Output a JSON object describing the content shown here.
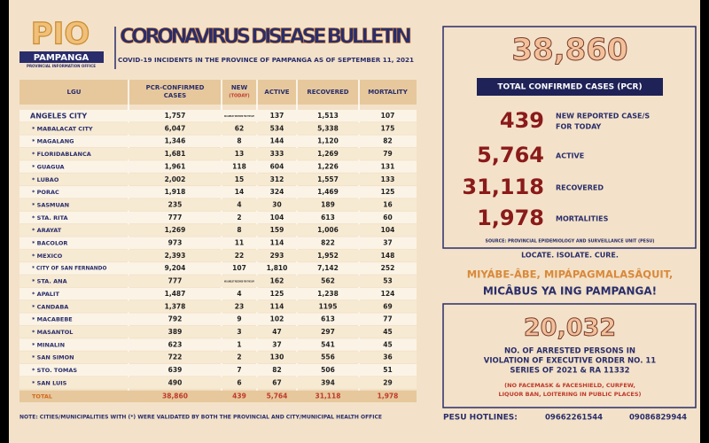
{
  "logo": {
    "title": "PIO",
    "label": "PAMPANGA",
    "office": "PROVINCIAL INFORMATION OFFICE"
  },
  "header": {
    "title": "CORONAVIRUS DISEASE BULLETIN",
    "subtitle": "COVID-19 INCIDENTS IN THE PROVINCE OF PAMPANGA AS OF SEPTEMBER 11, 2021"
  },
  "table": {
    "columns": [
      [
        "LGU"
      ],
      [
        "PCR-CONFIRMED",
        "CASES"
      ],
      [
        "NEW",
        "(TODAY)"
      ],
      [
        "ACTIVE"
      ],
      [
        "RECOVERED"
      ],
      [
        "MORTALITY"
      ]
    ],
    "rows": [
      [
        "ANGELES CITY",
        "1,757",
        "NO LINELIST RECEIVED FOR THE DAY",
        "137",
        "1,513",
        "107"
      ],
      [
        "* MABALACAT CITY",
        "6,047",
        "62",
        "534",
        "5,338",
        "175"
      ],
      [
        "* MAGALANG",
        "1,346",
        "8",
        "144",
        "1,120",
        "82"
      ],
      [
        "* FLORIDABLANCA",
        "1,681",
        "13",
        "333",
        "1,269",
        "79"
      ],
      [
        "* GUAGUA",
        "1,961",
        "118",
        "604",
        "1,226",
        "131"
      ],
      [
        "* LUBAO",
        "2,002",
        "15",
        "312",
        "1,557",
        "133"
      ],
      [
        "* PORAC",
        "1,918",
        "14",
        "324",
        "1,469",
        "125"
      ],
      [
        "* SASMUAN",
        "235",
        "4",
        "30",
        "189",
        "16"
      ],
      [
        "* STA. RITA",
        "777",
        "2",
        "104",
        "613",
        "60"
      ],
      [
        "* ARAYAT",
        "1,269",
        "8",
        "159",
        "1,006",
        "104"
      ],
      [
        "* BACOLOR",
        "973",
        "11",
        "114",
        "822",
        "37"
      ],
      [
        "* MEXICO",
        "2,393",
        "22",
        "293",
        "1,952",
        "148"
      ],
      [
        "* CITY OF SAN FERNANDO",
        "9,204",
        "107",
        "1,810",
        "7,142",
        "252"
      ],
      [
        "* STA. ANA",
        "777",
        "NO LINELIST RECEIVED FOR THE DAY",
        "162",
        "562",
        "53"
      ],
      [
        "* APALIT",
        "1,487",
        "4",
        "125",
        "1,238",
        "124"
      ],
      [
        "* CANDABA",
        "1,378",
        "23",
        "114",
        "1195",
        "69"
      ],
      [
        "* MACABEBE",
        "792",
        "9",
        "102",
        "613",
        "77"
      ],
      [
        "* MASANTOL",
        "389",
        "3",
        "47",
        "297",
        "45"
      ],
      [
        "* MINALIN",
        "623",
        "1",
        "37",
        "541",
        "45"
      ],
      [
        "* SAN SIMON",
        "722",
        "2",
        "130",
        "556",
        "36"
      ],
      [
        "* STO. TOMAS",
        "639",
        "7",
        "82",
        "506",
        "51"
      ],
      [
        "* SAN LUIS",
        "490",
        "6",
        "67",
        "394",
        "29"
      ]
    ],
    "total": [
      "TOTAL",
      "38,860",
      "439",
      "5,764",
      "31,118",
      "1,978"
    ]
  },
  "note": "NOTE: CITIES/MUNICIPALITIES WITH (*) WERE VALIDATED BY BOTH THE PROVINCIAL AND CITY/MUNICIPAL HEALTH OFFICE",
  "summary": {
    "total": "38,860",
    "total_label": "TOTAL CONFIRMED CASES (PCR)",
    "stats": [
      {
        "value": "439",
        "label": [
          "NEW REPORTED CASE/S",
          "FOR TODAY"
        ]
      },
      {
        "value": "5,764",
        "label": [
          "ACTIVE"
        ]
      },
      {
        "value": "31,118",
        "label": [
          "RECOVERED"
        ]
      },
      {
        "value": "1,978",
        "label": [
          "MORTALITIES"
        ]
      }
    ],
    "source": "SOURCE: PROVINCIAL EPIDEMIOLOGY AND SURVEILLANCE UNIT (PESU)",
    "motto": "LOCATE. ISOLATE. CURE."
  },
  "slogan": [
    "MIYÁBE-ÂBE, MIPÁPAGMALASÂQUIT,",
    "MICÂBUS YA ING PAMPANGA!"
  ],
  "arrested": {
    "value": "20,032",
    "lines": [
      "NO. OF ARRESTED PERSONS IN",
      "VIOLATION OF EXECUTIVE ORDER NO. 11",
      "SERIES OF 2021 & RA 11332"
    ],
    "conditions": [
      "(NO FACEMASK & FACESHIELD, CURFEW,",
      "LIQUOR BAN, LOITERING IN PUBLIC PLACES)"
    ]
  },
  "hotlines": {
    "label": "PESU HOTLINES:",
    "numbers": [
      "09662261544",
      "09086829944"
    ]
  }
}
